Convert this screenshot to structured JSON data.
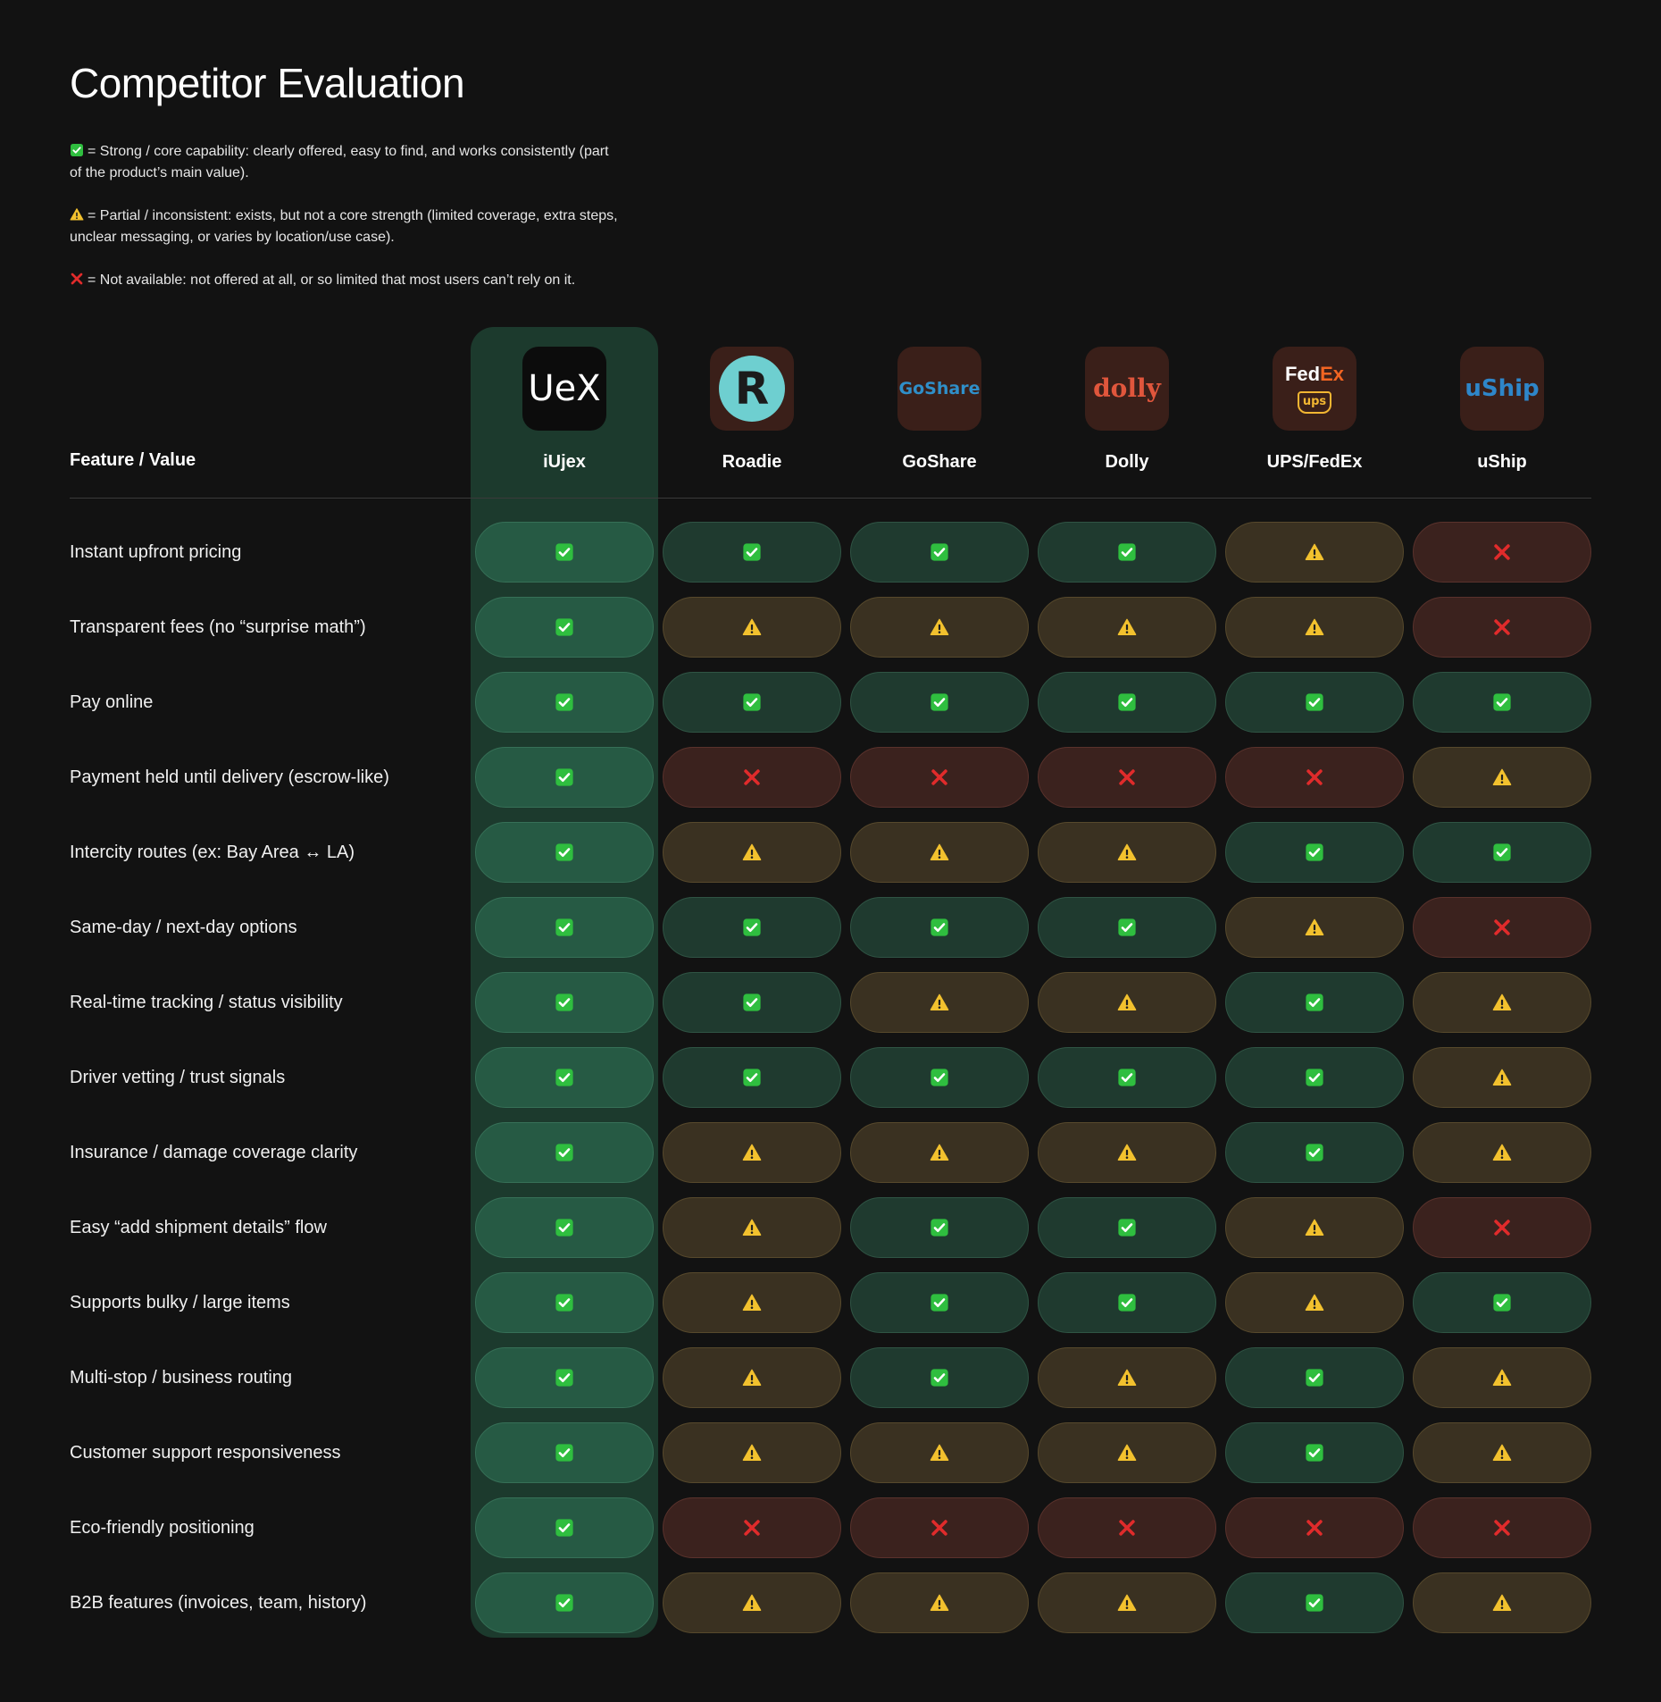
{
  "title": "Competitor Evaluation",
  "legend": {
    "yes": "= Strong / core capability: clearly offered, easy to find, and works consistently (part of the product’s main value).",
    "partial": "= Partial / inconsistent: exists, but not a core strength (limited coverage, extra steps, unclear messaging, or varies by location/use case).",
    "no": "= Not available: not offered at all, or so limited that most users can’t rely on it."
  },
  "icons": {
    "yes": "check-mark-button-icon",
    "partial": "warning-icon",
    "no": "cross-mark-icon"
  },
  "colors": {
    "yes_icon": "#2fbe3f",
    "partial_icon": "#f2c12e",
    "no_icon": "#e02b2b",
    "highlight_column": "#1c3a2d"
  },
  "feature_header": "Feature / Value",
  "competitors": [
    {
      "name": "iUjex",
      "logo_text": "UeX",
      "highlight": true
    },
    {
      "name": "Roadie",
      "logo_text": "R"
    },
    {
      "name": "GoShare",
      "logo_text": "GoShare"
    },
    {
      "name": "Dolly",
      "logo_text": "dolly"
    },
    {
      "name": "UPS/FedEx",
      "logo_text": "FedEx",
      "logo_subtext": "ups"
    },
    {
      "name": "uShip",
      "logo_text": "uShip"
    }
  ],
  "rows": [
    {
      "feature": "Instant upfront pricing",
      "ratings": [
        "yes",
        "yes",
        "yes",
        "yes",
        "partial",
        "no"
      ]
    },
    {
      "feature": "Transparent fees (no “surprise math”)",
      "ratings": [
        "yes",
        "partial",
        "partial",
        "partial",
        "partial",
        "no"
      ]
    },
    {
      "feature": "Pay online",
      "ratings": [
        "yes",
        "yes",
        "yes",
        "yes",
        "yes",
        "yes"
      ]
    },
    {
      "feature": "Payment held until delivery (escrow-like)",
      "ratings": [
        "yes",
        "no",
        "no",
        "no",
        "no",
        "partial"
      ]
    },
    {
      "feature": "Intercity routes (ex: Bay Area ↔ LA)",
      "ratings": [
        "yes",
        "partial",
        "partial",
        "partial",
        "yes",
        "yes"
      ]
    },
    {
      "feature": "Same-day / next-day options",
      "ratings": [
        "yes",
        "yes",
        "yes",
        "yes",
        "partial",
        "no"
      ]
    },
    {
      "feature": "Real-time tracking / status visibility",
      "ratings": [
        "yes",
        "yes",
        "partial",
        "partial",
        "yes",
        "partial"
      ]
    },
    {
      "feature": "Driver vetting / trust signals",
      "ratings": [
        "yes",
        "yes",
        "yes",
        "yes",
        "yes",
        "partial"
      ]
    },
    {
      "feature": "Insurance / damage coverage clarity",
      "ratings": [
        "yes",
        "partial",
        "partial",
        "partial",
        "yes",
        "partial"
      ]
    },
    {
      "feature": "Easy “add shipment details” flow",
      "ratings": [
        "yes",
        "partial",
        "yes",
        "yes",
        "partial",
        "no"
      ]
    },
    {
      "feature": "Supports bulky / large items",
      "ratings": [
        "yes",
        "partial",
        "yes",
        "yes",
        "partial",
        "yes"
      ]
    },
    {
      "feature": "Multi-stop / business routing",
      "ratings": [
        "yes",
        "partial",
        "yes",
        "partial",
        "yes",
        "partial"
      ]
    },
    {
      "feature": "Customer support responsiveness",
      "ratings": [
        "yes",
        "partial",
        "partial",
        "partial",
        "yes",
        "partial"
      ]
    },
    {
      "feature": "Eco-friendly positioning",
      "ratings": [
        "yes",
        "no",
        "no",
        "no",
        "no",
        "no"
      ]
    },
    {
      "feature": "B2B features (invoices, team, history)",
      "ratings": [
        "yes",
        "partial",
        "partial",
        "partial",
        "yes",
        "partial"
      ]
    }
  ]
}
